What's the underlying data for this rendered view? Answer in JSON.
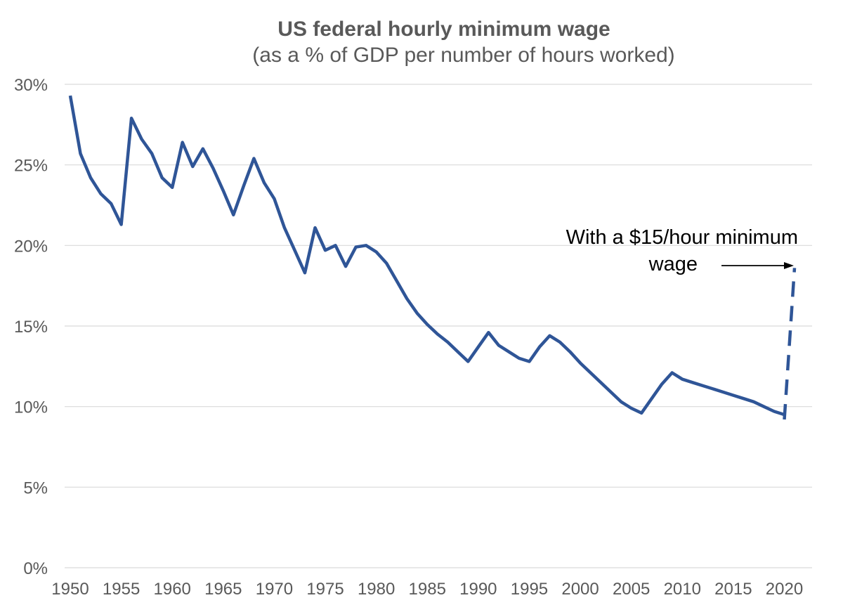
{
  "chart_data": {
    "type": "line",
    "title": "US federal hourly minimum wage",
    "subtitle": "(as a % of GDP per number of hours worked)",
    "xlabel": "",
    "ylabel": "",
    "xlim": [
      1950,
      2021
    ],
    "ylim": [
      0,
      30
    ],
    "grid": true,
    "y_ticks": [
      0,
      5,
      10,
      15,
      20,
      25,
      30
    ],
    "y_tick_labels": [
      "0%",
      "5%",
      "10%",
      "15%",
      "20%",
      "25%",
      "30%"
    ],
    "x_ticks": [
      1950,
      1955,
      1960,
      1965,
      1970,
      1975,
      1980,
      1985,
      1990,
      1995,
      2000,
      2005,
      2010,
      2015,
      2020
    ],
    "x_tick_labels": [
      "1950",
      "1955",
      "1960",
      "1965",
      "1970",
      "1975",
      "1980",
      "1985",
      "1990",
      "1995",
      "2000",
      "2005",
      "2010",
      "2015",
      "2020"
    ],
    "line_color": "#2F5597",
    "series": [
      {
        "style": "solid",
        "x": [
          1950,
          1951,
          1952,
          1953,
          1954,
          1955,
          1956,
          1957,
          1958,
          1959,
          1960,
          1961,
          1962,
          1963,
          1964,
          1965,
          1966,
          1967,
          1968,
          1969,
          1970,
          1971,
          1972,
          1973,
          1974,
          1975,
          1976,
          1977,
          1978,
          1979,
          1980,
          1981,
          1982,
          1983,
          1984,
          1985,
          1986,
          1987,
          1988,
          1989,
          1990,
          1991,
          1992,
          1993,
          1994,
          1995,
          1996,
          1997,
          1998,
          1999,
          2000,
          2001,
          2002,
          2003,
          2004,
          2005,
          2006,
          2007,
          2008,
          2009,
          2010,
          2011,
          2012,
          2013,
          2014,
          2015,
          2016,
          2017,
          2018,
          2019,
          2020
        ],
        "values": [
          29.3,
          25.7,
          24.2,
          23.2,
          22.6,
          21.3,
          27.9,
          26.6,
          25.7,
          24.2,
          23.6,
          26.4,
          24.9,
          26.0,
          24.8,
          23.4,
          21.9,
          23.7,
          25.4,
          23.9,
          22.9,
          21.1,
          19.7,
          18.3,
          21.1,
          19.7,
          20.0,
          18.7,
          19.9,
          20.0,
          19.6,
          18.9,
          17.8,
          16.7,
          15.8,
          15.1,
          14.5,
          14.0,
          13.4,
          12.8,
          13.7,
          14.6,
          13.8,
          13.4,
          13.0,
          12.8,
          13.7,
          14.4,
          14.0,
          13.4,
          12.7,
          12.1,
          11.5,
          10.9,
          10.3,
          9.9,
          9.6,
          10.5,
          11.4,
          12.1,
          11.7,
          11.5,
          11.3,
          11.1,
          10.9,
          10.7,
          10.5,
          10.3,
          10.0,
          9.7,
          9.5
        ]
      },
      {
        "style": "dashed",
        "x": [
          2020,
          2021
        ],
        "values": [
          9.2,
          18.6
        ]
      }
    ],
    "annotation": {
      "lines": [
        "With a $15/hour minimum",
        "wage"
      ]
    }
  }
}
